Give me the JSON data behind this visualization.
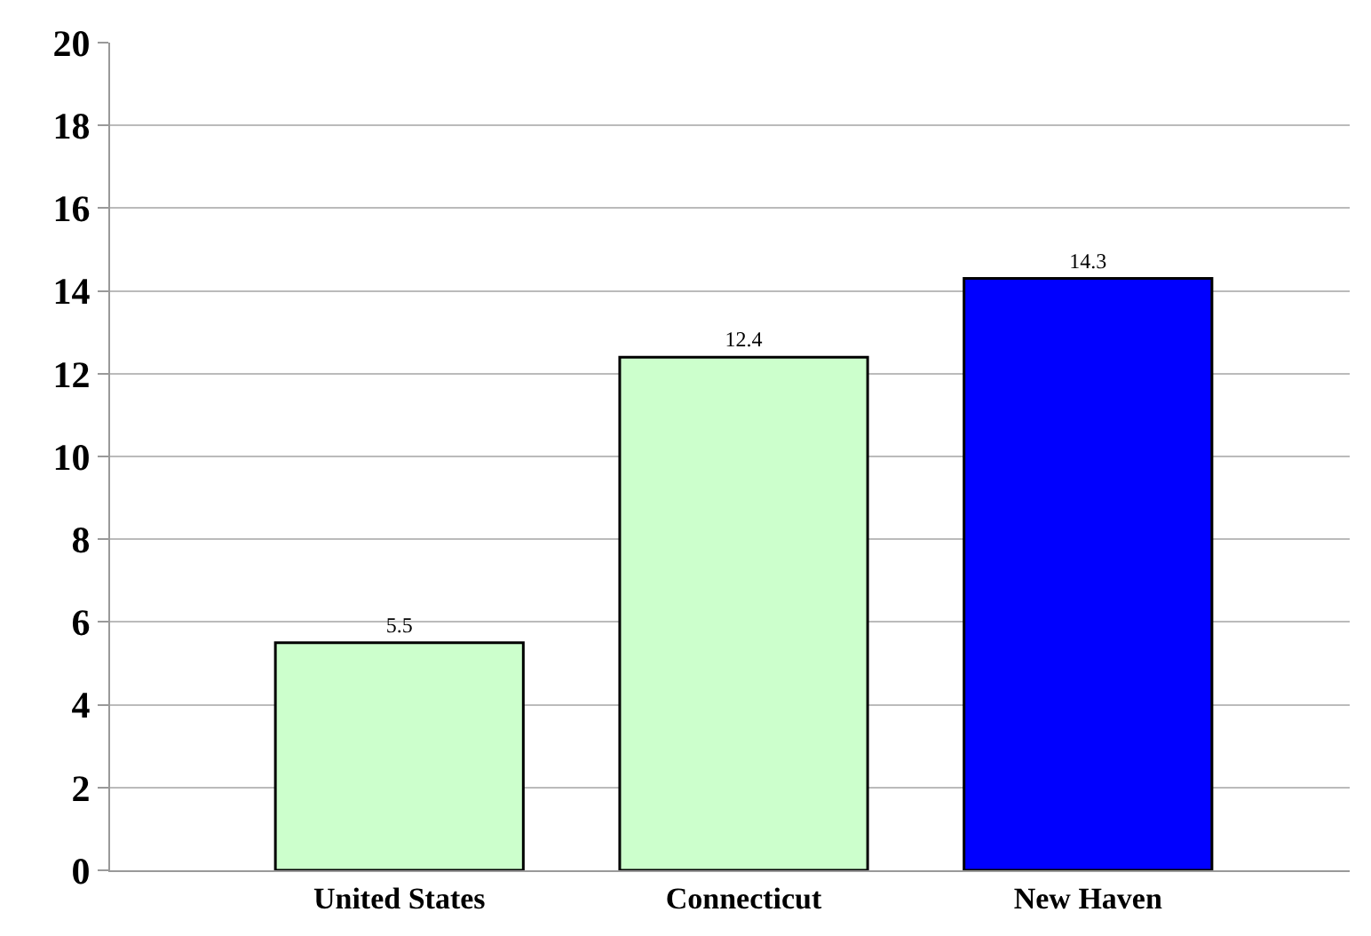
{
  "chart_data": {
    "type": "bar",
    "categories": [
      "United States",
      "Connecticut",
      "New Haven"
    ],
    "values": [
      5.5,
      12.4,
      14.3
    ],
    "colors": [
      "#ccffcc",
      "#ccffcc",
      "#0000ff"
    ],
    "ylim": [
      0,
      20
    ],
    "yticks": [
      0,
      2,
      4,
      6,
      8,
      10,
      12,
      14,
      16,
      18,
      20
    ],
    "grid": "y",
    "data_labels": true
  }
}
